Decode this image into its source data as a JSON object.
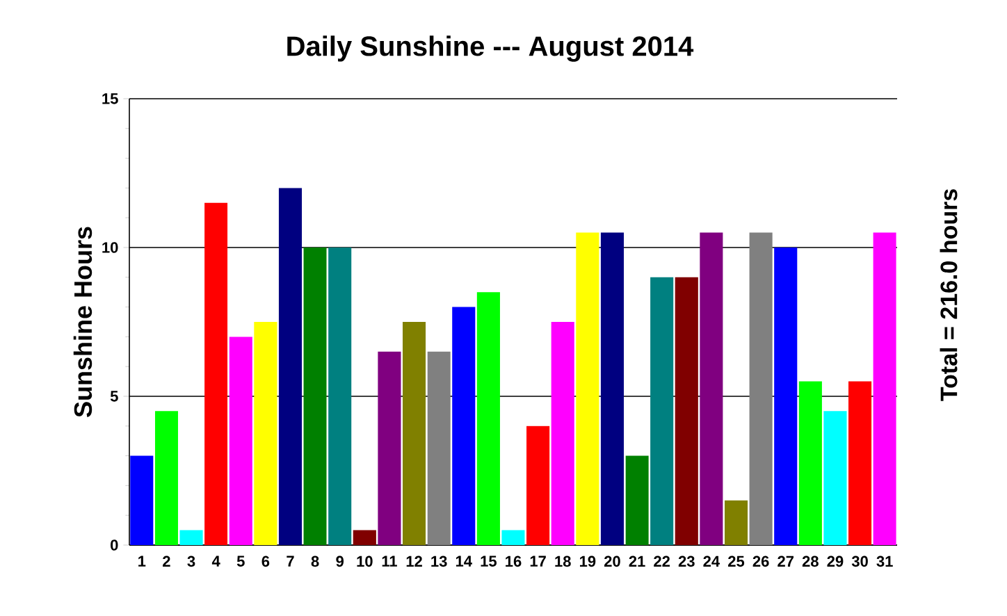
{
  "chart_data": {
    "type": "bar",
    "title": "Daily Sunshine --- August 2014",
    "ylabel": "Sunshine Hours",
    "annotations": [
      "Total = 216.0 hours"
    ],
    "categories": [
      "1",
      "2",
      "3",
      "4",
      "5",
      "6",
      "7",
      "8",
      "9",
      "10",
      "11",
      "12",
      "13",
      "14",
      "15",
      "16",
      "17",
      "18",
      "19",
      "20",
      "21",
      "22",
      "23",
      "24",
      "25",
      "26",
      "27",
      "28",
      "29",
      "30",
      "31"
    ],
    "values": [
      3,
      4.5,
      0.5,
      11.5,
      7,
      7.5,
      12,
      10,
      10,
      0.5,
      6.5,
      7.5,
      6.5,
      8,
      8.5,
      0.5,
      4,
      7.5,
      10.5,
      10.5,
      3,
      9,
      9,
      10.5,
      1.5,
      10.5,
      10,
      5.5,
      4.5,
      5.5,
      10.5
    ],
    "colors": [
      "#0000ff",
      "#00ff00",
      "#00ffff",
      "#ff0000",
      "#ff00ff",
      "#ffff00",
      "#000080",
      "#008000",
      "#008080",
      "#800000",
      "#800080",
      "#808000",
      "#808080",
      "#0000ff",
      "#00ff00",
      "#00ffff",
      "#ff0000",
      "#ff00ff",
      "#ffff00",
      "#000080",
      "#008000",
      "#008080",
      "#800000",
      "#800080",
      "#808000",
      "#808080",
      "#0000ff",
      "#00ff00",
      "#00ffff",
      "#ff0000",
      "#ff00ff"
    ],
    "ylim": [
      0,
      15
    ],
    "yticks": [
      0,
      5,
      10,
      15
    ],
    "grid": "y"
  }
}
